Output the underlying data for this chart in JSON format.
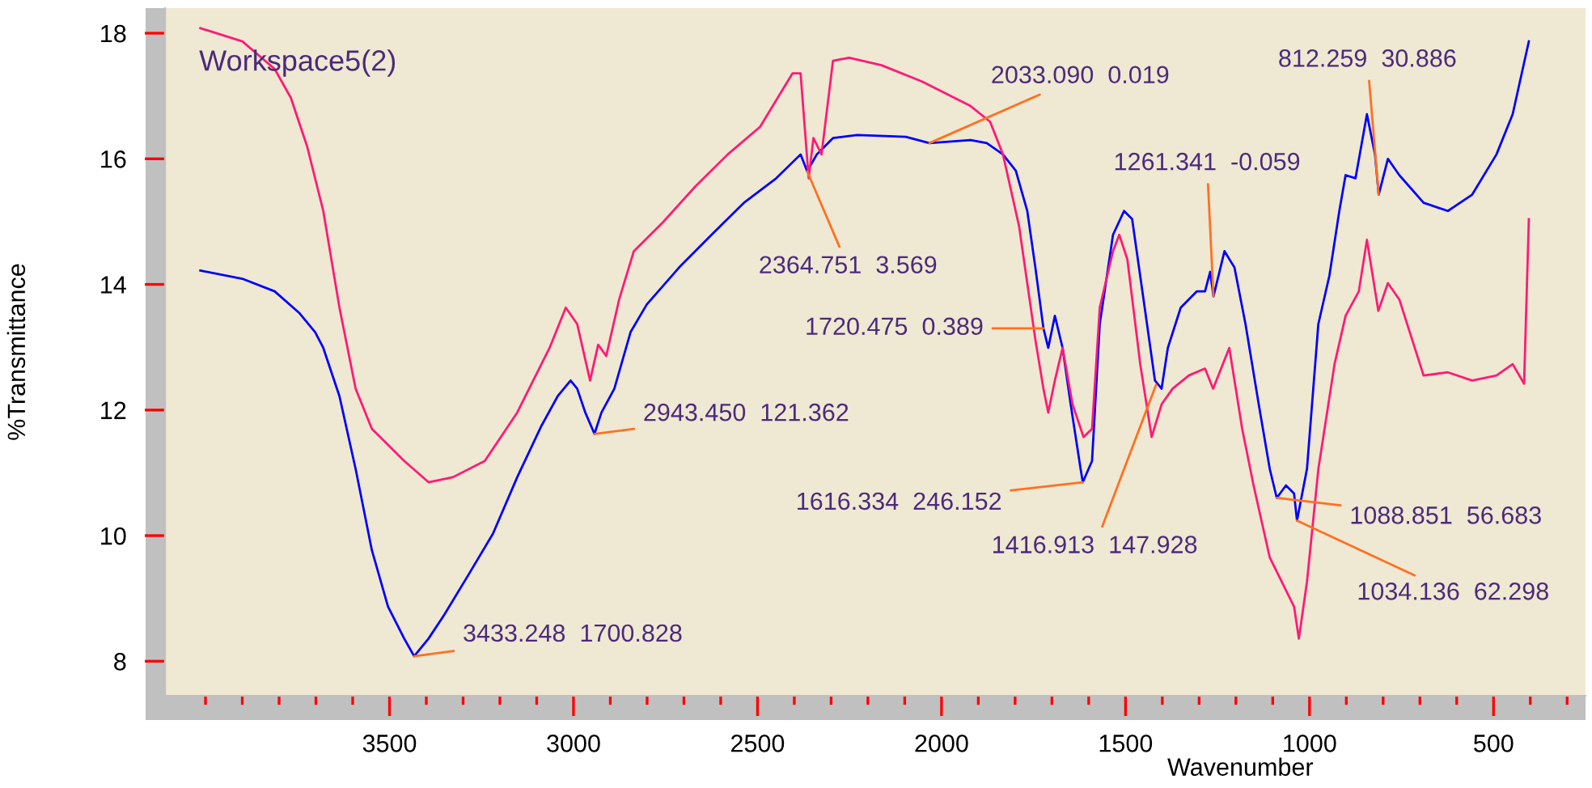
{
  "chart_data": {
    "type": "line",
    "title": "Workspace5(2)",
    "xlabel": "Wavenumber",
    "ylabel": "%Transmittance",
    "xlim": [
      4110,
      250
    ],
    "ylim": [
      7.45,
      18.4
    ],
    "xticks": [
      {
        "value": 4000,
        "label": null
      },
      {
        "value": 3900,
        "label": null
      },
      {
        "value": 3800,
        "label": null
      },
      {
        "value": 3700,
        "label": null
      },
      {
        "value": 3600,
        "label": null
      },
      3500,
      {
        "value": 3400,
        "label": null
      },
      {
        "value": 3300,
        "label": null
      },
      {
        "value": 3200,
        "label": null
      },
      {
        "value": 3100,
        "label": null
      },
      3000,
      {
        "value": 2900,
        "label": null
      },
      {
        "value": 2800,
        "label": null
      },
      {
        "value": 2700,
        "label": null
      },
      {
        "value": 2600,
        "label": null
      },
      2500,
      {
        "value": 2400,
        "label": null
      },
      {
        "value": 2300,
        "label": null
      },
      {
        "value": 2200,
        "label": null
      },
      {
        "value": 2100,
        "label": null
      },
      2000,
      {
        "value": 1900,
        "label": null
      },
      {
        "value": 1800,
        "label": null
      },
      {
        "value": 1700,
        "label": null
      },
      {
        "value": 1600,
        "label": null
      },
      1500,
      {
        "value": 1400,
        "label": null
      },
      {
        "value": 1300,
        "label": null
      },
      {
        "value": 1200,
        "label": null
      },
      {
        "value": 1100,
        "label": null
      },
      1000,
      {
        "value": 900,
        "label": null
      },
      {
        "value": 800,
        "label": null
      },
      {
        "value": 700,
        "label": null
      },
      {
        "value": 600,
        "label": null
      },
      500,
      {
        "value": 400,
        "label": null
      },
      {
        "value": 300,
        "label": null
      }
    ],
    "yticks": [
      8,
      10,
      12,
      14,
      16,
      18
    ],
    "series": [
      {
        "color": "#0000ff",
        "x": [
          4014,
          3900,
          3812,
          3746,
          3702,
          3680,
          3636,
          3592,
          3548,
          3504,
          3460,
          3433,
          3394,
          3350,
          3284,
          3219,
          3153,
          3087,
          3043,
          3008,
          2990,
          2968,
          2943,
          2924,
          2889,
          2845,
          2801,
          2713,
          2625,
          2537,
          2449,
          2383,
          2365,
          2339,
          2295,
          2229,
          2097,
          2033,
          1921,
          1877,
          1833,
          1798,
          1767,
          1745,
          1723,
          1710,
          1692,
          1671,
          1649,
          1622,
          1616,
          1591,
          1570,
          1534,
          1504,
          1482,
          1451,
          1420,
          1402,
          1385,
          1350,
          1306,
          1284,
          1270,
          1261,
          1231,
          1204,
          1174,
          1138,
          1108,
          1089,
          1064,
          1042,
          1034,
          1007,
          976,
          946,
          919,
          902,
          875,
          844,
          822,
          812,
          787,
          756,
          690,
          624,
          558,
          492,
          448,
          404
        ],
        "values": [
          14.22,
          14.09,
          13.89,
          13.55,
          13.24,
          12.99,
          12.22,
          11.06,
          9.77,
          8.87,
          8.36,
          8.08,
          8.36,
          8.75,
          9.39,
          10.03,
          10.93,
          11.75,
          12.22,
          12.47,
          12.34,
          11.96,
          11.62,
          11.96,
          12.34,
          13.24,
          13.68,
          14.27,
          14.79,
          15.3,
          15.69,
          16.07,
          15.8,
          16.07,
          16.33,
          16.38,
          16.35,
          16.25,
          16.3,
          16.25,
          16.07,
          15.81,
          15.17,
          14.27,
          13.3,
          12.99,
          13.5,
          12.99,
          12.09,
          11.06,
          10.85,
          11.19,
          13.37,
          14.79,
          15.17,
          15.04,
          13.76,
          12.47,
          12.34,
          12.99,
          13.63,
          13.89,
          13.89,
          14.2,
          13.81,
          14.53,
          14.27,
          13.37,
          12.09,
          11.06,
          10.6,
          10.8,
          10.67,
          10.24,
          11.06,
          13.37,
          14.14,
          15.17,
          15.74,
          15.69,
          16.71,
          16.07,
          15.43,
          16.0,
          15.74,
          15.3,
          15.17,
          15.43,
          16.07,
          16.71,
          17.87
        ]
      },
      {
        "color": "#ff1a75",
        "x": [
          4014,
          3900,
          3812,
          3768,
          3724,
          3680,
          3636,
          3592,
          3548,
          3460,
          3394,
          3328,
          3241,
          3153,
          3065,
          3021,
          2990,
          2955,
          2933,
          2911,
          2876,
          2836,
          2757,
          2669,
          2581,
          2493,
          2405,
          2383,
          2361,
          2348,
          2326,
          2295,
          2251,
          2163,
          2053,
          1921,
          1868,
          1833,
          1789,
          1767,
          1745,
          1723,
          1710,
          1692,
          1671,
          1644,
          1614,
          1591,
          1570,
          1534,
          1517,
          1495,
          1460,
          1429,
          1402,
          1372,
          1328,
          1284,
          1262,
          1218,
          1183,
          1152,
          1108,
          1064,
          1042,
          1029,
          1007,
          976,
          932,
          902,
          866,
          844,
          813,
          787,
          756,
          690,
          624,
          558,
          492,
          448,
          417,
          404
        ],
        "values": [
          18.08,
          17.87,
          17.43,
          16.97,
          16.2,
          15.17,
          13.63,
          12.34,
          11.7,
          11.19,
          10.85,
          10.93,
          11.19,
          11.96,
          12.99,
          13.63,
          13.37,
          12.47,
          13.04,
          12.86,
          13.76,
          14.53,
          14.99,
          15.56,
          16.07,
          16.51,
          17.36,
          17.36,
          15.69,
          16.33,
          16.07,
          17.56,
          17.61,
          17.49,
          17.23,
          16.84,
          16.59,
          16.07,
          14.92,
          14.02,
          13.12,
          12.34,
          11.96,
          12.47,
          12.99,
          12.09,
          11.57,
          11.7,
          13.63,
          14.53,
          14.79,
          14.4,
          12.73,
          11.57,
          12.09,
          12.34,
          12.55,
          12.66,
          12.34,
          12.99,
          11.7,
          10.8,
          9.65,
          9.13,
          8.87,
          8.36,
          9.26,
          11.06,
          12.73,
          13.5,
          13.89,
          14.71,
          13.58,
          14.02,
          13.76,
          12.55,
          12.6,
          12.47,
          12.55,
          12.73,
          12.42,
          15.04
        ]
      }
    ],
    "annotations": [
      {
        "text": "3433.248  1700.828",
        "x": 3433,
        "y": 8.08
      },
      {
        "text": "2943.450  121.362",
        "x": 2943,
        "y": 11.62
      },
      {
        "text": "2364.751  3.569",
        "x": 2365,
        "y": 15.8
      },
      {
        "text": "2033.090  0.019",
        "x": 2033,
        "y": 16.25
      },
      {
        "text": "1720.475  0.389",
        "x": 1723,
        "y": 13.3
      },
      {
        "text": "1616.334  246.152",
        "x": 1616,
        "y": 10.85
      },
      {
        "text": "1416.913  147.928",
        "x": 1417,
        "y": 12.4
      },
      {
        "text": "1261.341  -0.059",
        "x": 1261,
        "y": 13.81
      },
      {
        "text": "1088.851  56.683",
        "x": 1089,
        "y": 10.6
      },
      {
        "text": "1034.136  62.298",
        "x": 1034,
        "y": 10.24
      },
      {
        "text": "812.259  30.886",
        "x": 812,
        "y": 15.43
      }
    ]
  }
}
